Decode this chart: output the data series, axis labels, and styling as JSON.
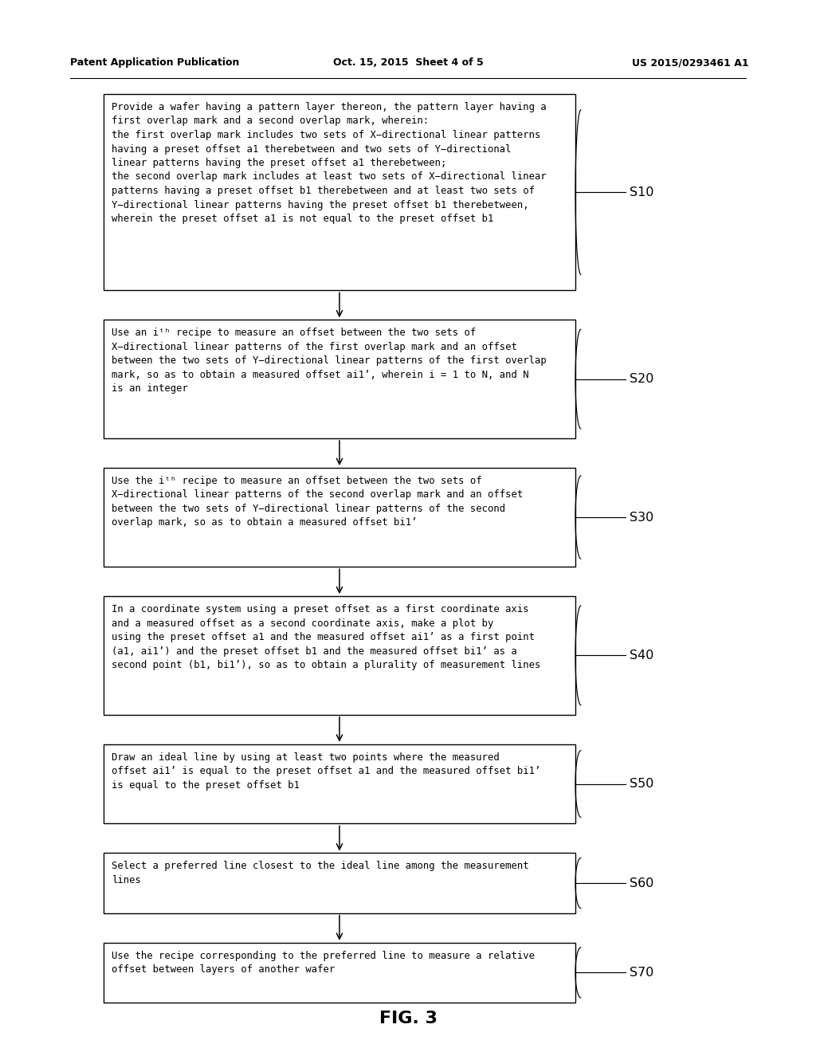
{
  "header_left": "Patent Application Publication",
  "header_center": "Oct. 15, 2015  Sheet 4 of 5",
  "header_right": "US 2015/0293461 A1",
  "figure_label": "FIG. 3",
  "background_color": "#ffffff",
  "text_color": "#000000",
  "steps": [
    {
      "label": "S10",
      "text": "Provide a wafer having a pattern layer thereon, the pattern layer having a\nfirst overlap mark and a second overlap mark, wherein:\nthe first overlap mark includes two sets of X−directional linear patterns\nhaving a preset offset a1 therebetween and two sets of Y−directional\nlinear patterns having the preset offset a1 therebetween;\nthe second overlap mark includes at least two sets of X−directional linear\npatterns having a preset offset b1 therebetween and at least two sets of\nY−directional linear patterns having the preset offset b1 therebetween,\nwherein the preset offset a1 is not equal to the preset offset b1"
    },
    {
      "label": "S20",
      "text": "Use an iᵗʰ recipe to measure an offset between the two sets of\nX−directional linear patterns of the first overlap mark and an offset\nbetween the two sets of Y−directional linear patterns of the first overlap\nmark, so as to obtain a measured offset ai1’, wherein i = 1 to N, and N\nis an integer"
    },
    {
      "label": "S30",
      "text": "Use the iᵗʰ recipe to measure an offset between the two sets of\nX−directional linear patterns of the second overlap mark and an offset\nbetween the two sets of Y−directional linear patterns of the second\noverlap mark, so as to obtain a measured offset bi1’"
    },
    {
      "label": "S40",
      "text": "In a coordinate system using a preset offset as a first coordinate axis\nand a measured offset as a second coordinate axis, make a plot by\nusing the preset offset a1 and the measured offset ai1’ as a first point\n(a1, ai1’) and the preset offset b1 and the measured offset bi1’ as a\nsecond point (b1, bi1’), so as to obtain a plurality of measurement lines"
    },
    {
      "label": "S50",
      "text": "Draw an ideal line by using at least two points where the measured\noffset ai1’ is equal to the preset offset a1 and the measured offset bi1’\nis equal to the preset offset b1"
    },
    {
      "label": "S60",
      "text": "Select a preferred line closest to the ideal line among the measurement\nlines"
    },
    {
      "label": "S70",
      "text": "Use the recipe corresponding to the preferred line to measure a relative\noffset between layers of another wafer"
    }
  ]
}
